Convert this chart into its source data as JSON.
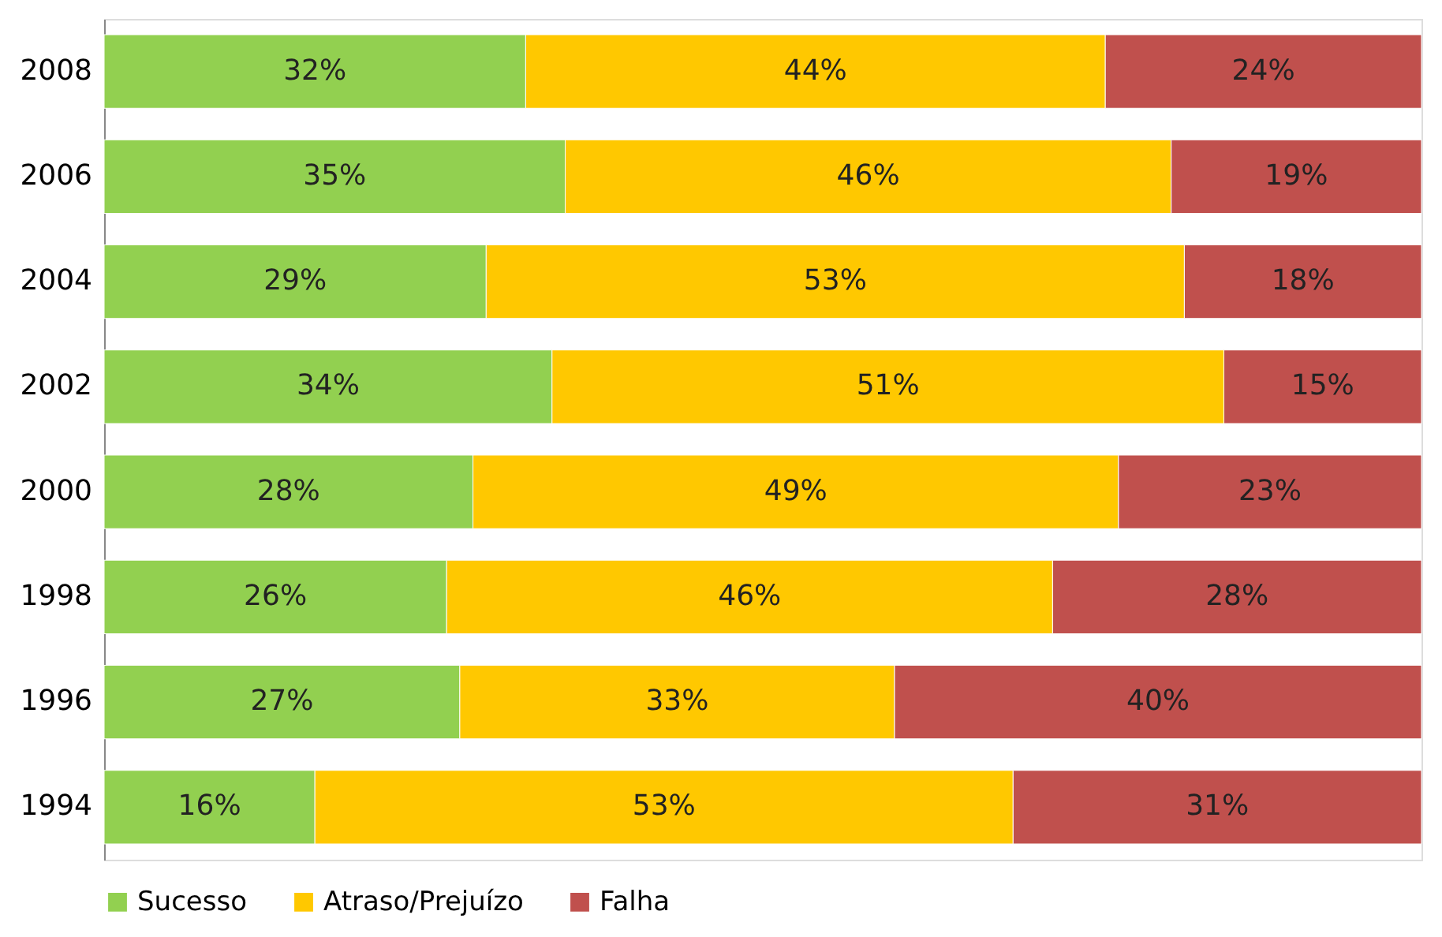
{
  "chart_data": {
    "type": "bar",
    "orientation": "horizontal",
    "stacked": true,
    "tick_labels": "y",
    "legend": "bottom",
    "grid": false,
    "xlim": [
      0,
      100
    ],
    "categories": [
      "2008",
      "2006",
      "2004",
      "2002",
      "2000",
      "1998",
      "1996",
      "1994"
    ],
    "series": [
      {
        "name": "Sucesso",
        "color": "#92d050",
        "values": [
          32,
          35,
          29,
          34,
          28,
          26,
          27,
          16
        ],
        "value_labels": [
          "32%",
          "35%",
          "29%",
          "34%",
          "28%",
          "26%",
          "27%",
          "16%"
        ]
      },
      {
        "name": "Atraso/Prejuízo",
        "color": "#ffc800",
        "values": [
          44,
          46,
          53,
          51,
          49,
          46,
          33,
          53
        ],
        "value_labels": [
          "44%",
          "46%",
          "53%",
          "51%",
          "49%",
          "46%",
          "33%",
          "53%"
        ]
      },
      {
        "name": "Falha",
        "color": "#c0504d",
        "values": [
          24,
          19,
          18,
          15,
          23,
          28,
          40,
          31
        ],
        "value_labels": [
          "24%",
          "19%",
          "18%",
          "15%",
          "23%",
          "28%",
          "40%",
          "31%"
        ]
      }
    ]
  }
}
